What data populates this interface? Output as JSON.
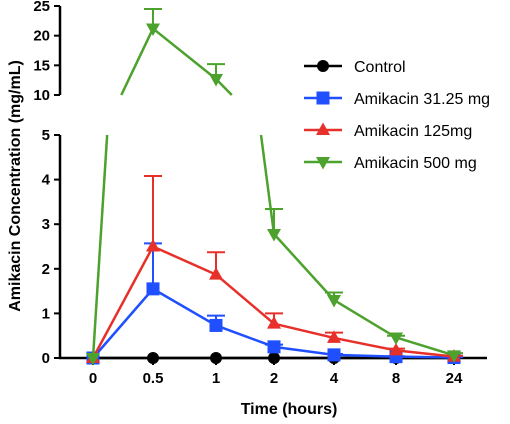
{
  "chart_data": {
    "type": "line",
    "xlabel": "Time (hours)",
    "ylabel": "Amikacin Concentration (mg/mL)",
    "x_categories": [
      "0",
      "0.5",
      "1",
      "2",
      "4",
      "8",
      "24"
    ],
    "y_axis": {
      "broken": true,
      "lower_range": [
        0,
        5
      ],
      "lower_ticks": [
        "0",
        "1",
        "2",
        "3",
        "4",
        "5"
      ],
      "upper_range": [
        10,
        25
      ],
      "upper_ticks": [
        "10",
        "15",
        "20",
        "25"
      ]
    },
    "legend_position": "right",
    "series": [
      {
        "name": "Control",
        "color": "#000000",
        "marker": "circle",
        "values": [
          0,
          0,
          0,
          0,
          0,
          0,
          0
        ],
        "error": [
          0,
          0,
          0,
          0,
          0,
          0,
          0
        ]
      },
      {
        "name": "Amikacin 31.25 mg",
        "color": "#1f4fff",
        "marker": "square",
        "values": [
          0,
          1.55,
          0.73,
          0.25,
          0.07,
          0.03,
          0.01
        ],
        "error": [
          0,
          1.02,
          0.22,
          0.05,
          0.02,
          0.01,
          0.01
        ]
      },
      {
        "name": "Amikacin 125mg",
        "color": "#e8302a",
        "marker": "triangle-up",
        "values": [
          0,
          2.5,
          1.87,
          0.77,
          0.45,
          0.17,
          0.03
        ],
        "error": [
          0,
          1.58,
          0.5,
          0.23,
          0.12,
          0.04,
          0.02
        ]
      },
      {
        "name": "Amikacin 500 mg",
        "color": "#4ca22d",
        "marker": "triangle-down",
        "values": [
          0,
          21.2,
          12.7,
          2.78,
          1.3,
          0.46,
          0.06
        ],
        "error": [
          0,
          3.3,
          2.5,
          0.56,
          0.17,
          0.04,
          0.05
        ]
      }
    ]
  }
}
